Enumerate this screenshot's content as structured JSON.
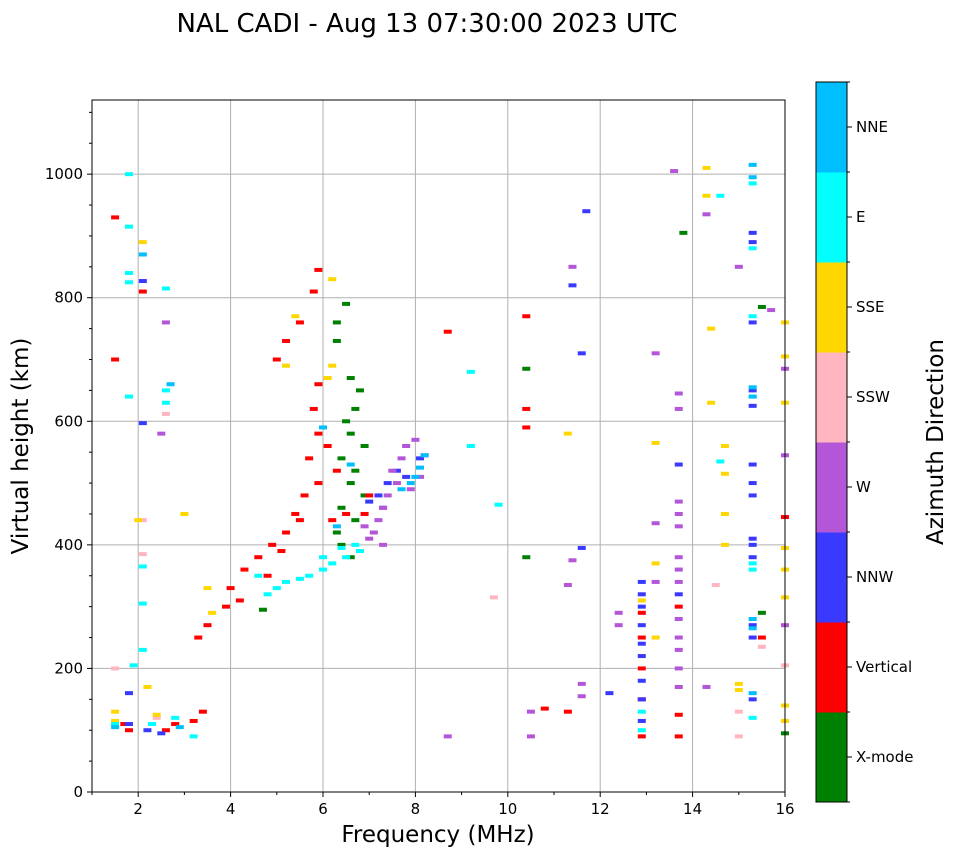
{
  "chart_data": {
    "type": "scatter",
    "title": "NAL CADI - Aug 13 07:30:00 2023 UTC",
    "xlabel": "Frequency (MHz)",
    "ylabel": "Virtual height (km)",
    "xlim": [
      1,
      16
    ],
    "ylim": [
      0,
      1120
    ],
    "xticks": [
      "2",
      "4",
      "6",
      "8",
      "10",
      "12",
      "14",
      "16"
    ],
    "yticks": [
      "0",
      "200",
      "400",
      "600",
      "800",
      "1000"
    ],
    "xtick_values": [
      2,
      4,
      6,
      8,
      10,
      12,
      14,
      16
    ],
    "ytick_values": [
      0,
      200,
      400,
      600,
      800,
      1000
    ],
    "grid": true,
    "colorbar": {
      "label": "Azimuth Direction",
      "categories": [
        {
          "name": "X-mode",
          "color": "#008000"
        },
        {
          "name": "Vertical",
          "color": "#ff0000"
        },
        {
          "name": "NNW",
          "color": "#3a3aff"
        },
        {
          "name": "W",
          "color": "#b456d8"
        },
        {
          "name": "SSW",
          "color": "#ffb6c1"
        },
        {
          "name": "SSE",
          "color": "#ffd700"
        },
        {
          "name": "E",
          "color": "#00ffff"
        },
        {
          "name": "NNE",
          "color": "#00bfff"
        }
      ]
    },
    "series": [
      {
        "name": "X-mode",
        "points": [
          [
            6.5,
            790
          ],
          [
            6.3,
            760
          ],
          [
            6.6,
            670
          ],
          [
            6.8,
            650
          ],
          [
            6.7,
            620
          ],
          [
            6.5,
            600
          ],
          [
            6.6,
            580
          ],
          [
            6.9,
            560
          ],
          [
            6.4,
            540
          ],
          [
            6.7,
            520
          ],
          [
            6.6,
            500
          ],
          [
            6.9,
            480
          ],
          [
            6.4,
            460
          ],
          [
            6.7,
            440
          ],
          [
            6.3,
            420
          ],
          [
            6.4,
            400
          ],
          [
            6.6,
            380
          ],
          [
            13.8,
            905
          ],
          [
            15.5,
            290
          ],
          [
            15.5,
            785
          ],
          [
            16.0,
            95
          ],
          [
            4.7,
            295
          ],
          [
            6.3,
            730
          ],
          [
            10.4,
            685
          ],
          [
            10.4,
            380
          ]
        ]
      },
      {
        "name": "Vertical",
        "points": [
          [
            5.9,
            845
          ],
          [
            5.8,
            810
          ],
          [
            5.5,
            760
          ],
          [
            5.2,
            730
          ],
          [
            5.0,
            700
          ],
          [
            5.9,
            660
          ],
          [
            5.8,
            620
          ],
          [
            5.9,
            580
          ],
          [
            5.7,
            540
          ],
          [
            5.9,
            500
          ],
          [
            5.6,
            480
          ],
          [
            5.4,
            450
          ],
          [
            5.2,
            420
          ],
          [
            4.9,
            400
          ],
          [
            4.6,
            380
          ],
          [
            4.3,
            360
          ],
          [
            4.0,
            330
          ],
          [
            3.9,
            300
          ],
          [
            3.5,
            270
          ],
          [
            3.3,
            250
          ],
          [
            3.4,
            130
          ],
          [
            2.8,
            110
          ],
          [
            2.6,
            100
          ],
          [
            3.2,
            115
          ],
          [
            6.1,
            560
          ],
          [
            6.3,
            520
          ],
          [
            7.0,
            480
          ],
          [
            6.9,
            450
          ],
          [
            10.4,
            770
          ],
          [
            10.4,
            620
          ],
          [
            10.4,
            590
          ],
          [
            8.7,
            745
          ],
          [
            11.3,
            130
          ],
          [
            10.8,
            135
          ],
          [
            12.9,
            290
          ],
          [
            12.9,
            250
          ],
          [
            12.9,
            200
          ],
          [
            12.9,
            150
          ],
          [
            12.9,
            90
          ],
          [
            13.7,
            300
          ],
          [
            13.7,
            125
          ],
          [
            13.7,
            90
          ],
          [
            15.5,
            250
          ],
          [
            16.0,
            445
          ],
          [
            1.5,
            930
          ],
          [
            1.5,
            700
          ],
          [
            2.1,
            810
          ],
          [
            1.7,
            110
          ],
          [
            1.8,
            100
          ],
          [
            4.2,
            310
          ],
          [
            4.8,
            350
          ],
          [
            5.1,
            390
          ],
          [
            5.5,
            440
          ],
          [
            6.2,
            440
          ],
          [
            6.5,
            450
          ]
        ]
      },
      {
        "name": "NNW",
        "points": [
          [
            7.6,
            520
          ],
          [
            7.4,
            500
          ],
          [
            7.2,
            480
          ],
          [
            7.0,
            470
          ],
          [
            7.3,
            460
          ],
          [
            8.1,
            540
          ],
          [
            7.8,
            510
          ],
          [
            11.7,
            940
          ],
          [
            11.4,
            820
          ],
          [
            11.6,
            710
          ],
          [
            11.6,
            395
          ],
          [
            12.2,
            160
          ],
          [
            12.9,
            340
          ],
          [
            12.9,
            320
          ],
          [
            12.9,
            300
          ],
          [
            12.9,
            270
          ],
          [
            12.9,
            240
          ],
          [
            12.9,
            220
          ],
          [
            12.9,
            180
          ],
          [
            12.9,
            150
          ],
          [
            12.9,
            115
          ],
          [
            13.7,
            530
          ],
          [
            13.7,
            320
          ],
          [
            15.3,
            905
          ],
          [
            15.3,
            890
          ],
          [
            15.3,
            760
          ],
          [
            15.3,
            650
          ],
          [
            15.3,
            625
          ],
          [
            15.3,
            530
          ],
          [
            15.3,
            500
          ],
          [
            15.3,
            480
          ],
          [
            15.3,
            410
          ],
          [
            15.3,
            400
          ],
          [
            15.3,
            380
          ],
          [
            15.3,
            270
          ],
          [
            15.3,
            250
          ],
          [
            15.3,
            150
          ],
          [
            1.8,
            160
          ],
          [
            1.8,
            110
          ],
          [
            2.2,
            100
          ],
          [
            2.5,
            95
          ],
          [
            2.1,
            827
          ],
          [
            2.1,
            597
          ]
        ]
      },
      {
        "name": "W",
        "points": [
          [
            8.0,
            570
          ],
          [
            7.8,
            560
          ],
          [
            8.2,
            545
          ],
          [
            7.7,
            540
          ],
          [
            7.5,
            520
          ],
          [
            7.6,
            500
          ],
          [
            7.4,
            480
          ],
          [
            7.3,
            460
          ],
          [
            7.2,
            440
          ],
          [
            7.1,
            420
          ],
          [
            7.0,
            410
          ],
          [
            7.3,
            400
          ],
          [
            6.9,
            430
          ],
          [
            8.1,
            510
          ],
          [
            7.9,
            490
          ],
          [
            13.6,
            1005
          ],
          [
            14.3,
            935
          ],
          [
            15.0,
            850
          ],
          [
            15.7,
            780
          ],
          [
            16.0,
            685
          ],
          [
            16.0,
            545
          ],
          [
            13.2,
            710
          ],
          [
            13.7,
            645
          ],
          [
            13.7,
            620
          ],
          [
            13.7,
            470
          ],
          [
            13.7,
            450
          ],
          [
            13.7,
            430
          ],
          [
            13.7,
            380
          ],
          [
            13.7,
            360
          ],
          [
            13.7,
            340
          ],
          [
            13.7,
            280
          ],
          [
            13.7,
            250
          ],
          [
            13.7,
            230
          ],
          [
            13.7,
            200
          ],
          [
            13.7,
            170
          ],
          [
            13.2,
            435
          ],
          [
            13.2,
            340
          ],
          [
            12.4,
            290
          ],
          [
            12.4,
            270
          ],
          [
            11.6,
            175
          ],
          [
            11.6,
            155
          ],
          [
            11.3,
            335
          ],
          [
            11.4,
            375
          ],
          [
            11.4,
            850
          ],
          [
            10.5,
            90
          ],
          [
            10.5,
            130
          ],
          [
            8.7,
            90
          ],
          [
            14.3,
            170
          ],
          [
            16.0,
            270
          ],
          [
            2.5,
            580
          ],
          [
            2.6,
            760
          ]
        ]
      },
      {
        "name": "SSW",
        "points": [
          [
            14.5,
            335
          ],
          [
            15.5,
            235
          ],
          [
            15.0,
            90
          ],
          [
            15.0,
            130
          ],
          [
            16.0,
            205
          ],
          [
            9.7,
            315
          ],
          [
            2.4,
            120
          ],
          [
            2.6,
            612
          ],
          [
            1.5,
            200
          ],
          [
            2.1,
            440
          ],
          [
            2.1,
            385
          ]
        ]
      },
      {
        "name": "SSE",
        "points": [
          [
            14.3,
            1010
          ],
          [
            14.3,
            965
          ],
          [
            14.4,
            750
          ],
          [
            14.4,
            630
          ],
          [
            14.7,
            560
          ],
          [
            14.7,
            515
          ],
          [
            14.7,
            450
          ],
          [
            14.7,
            400
          ],
          [
            15.0,
            175
          ],
          [
            15.0,
            165
          ],
          [
            16.0,
            760
          ],
          [
            16.0,
            705
          ],
          [
            16.0,
            630
          ],
          [
            16.0,
            395
          ],
          [
            16.0,
            360
          ],
          [
            16.0,
            315
          ],
          [
            16.0,
            140
          ],
          [
            16.0,
            115
          ],
          [
            13.2,
            565
          ],
          [
            13.2,
            370
          ],
          [
            13.2,
            250
          ],
          [
            11.3,
            580
          ],
          [
            6.2,
            830
          ],
          [
            6.2,
            690
          ],
          [
            6.1,
            670
          ],
          [
            5.2,
            690
          ],
          [
            5.4,
            770
          ],
          [
            1.5,
            130
          ],
          [
            1.5,
            115
          ],
          [
            2.1,
            890
          ],
          [
            2.2,
            170
          ],
          [
            2.4,
            125
          ],
          [
            3.0,
            450
          ],
          [
            3.5,
            330
          ],
          [
            2.0,
            440
          ],
          [
            12.9,
            310
          ],
          [
            3.6,
            290
          ]
        ]
      },
      {
        "name": "E",
        "points": [
          [
            6.8,
            390
          ],
          [
            6.5,
            380
          ],
          [
            6.2,
            370
          ],
          [
            6.0,
            360
          ],
          [
            5.7,
            350
          ],
          [
            5.5,
            345
          ],
          [
            5.2,
            340
          ],
          [
            5.0,
            330
          ],
          [
            4.8,
            320
          ],
          [
            4.6,
            350
          ],
          [
            6.4,
            395
          ],
          [
            6.7,
            400
          ],
          [
            6.0,
            380
          ],
          [
            9.2,
            680
          ],
          [
            9.2,
            560
          ],
          [
            9.8,
            465
          ],
          [
            14.6,
            965
          ],
          [
            14.6,
            535
          ],
          [
            15.3,
            985
          ],
          [
            15.3,
            880
          ],
          [
            15.3,
            770
          ],
          [
            15.3,
            640
          ],
          [
            15.3,
            370
          ],
          [
            15.3,
            360
          ],
          [
            15.3,
            120
          ],
          [
            12.9,
            130
          ],
          [
            12.9,
            100
          ],
          [
            1.8,
            1000
          ],
          [
            1.8,
            915
          ],
          [
            1.8,
            840
          ],
          [
            1.8,
            825
          ],
          [
            1.8,
            640
          ],
          [
            2.6,
            815
          ],
          [
            2.6,
            650
          ],
          [
            2.6,
            630
          ],
          [
            2.1,
            365
          ],
          [
            2.1,
            305
          ],
          [
            2.1,
            230
          ],
          [
            1.9,
            205
          ],
          [
            1.5,
            110
          ],
          [
            3.2,
            90
          ],
          [
            2.8,
            120
          ],
          [
            2.3,
            110
          ]
        ]
      },
      {
        "name": "NNE",
        "points": [
          [
            8.2,
            545
          ],
          [
            8.1,
            525
          ],
          [
            8.0,
            510
          ],
          [
            7.9,
            500
          ],
          [
            7.7,
            490
          ],
          [
            15.3,
            1015
          ],
          [
            15.3,
            995
          ],
          [
            15.3,
            655
          ],
          [
            15.3,
            640
          ],
          [
            15.3,
            280
          ],
          [
            15.3,
            265
          ],
          [
            15.3,
            160
          ],
          [
            6.0,
            590
          ],
          [
            6.3,
            430
          ],
          [
            6.6,
            530
          ],
          [
            2.1,
            870
          ],
          [
            2.7,
            660
          ],
          [
            2.9,
            105
          ],
          [
            1.5,
            105
          ]
        ]
      }
    ]
  }
}
